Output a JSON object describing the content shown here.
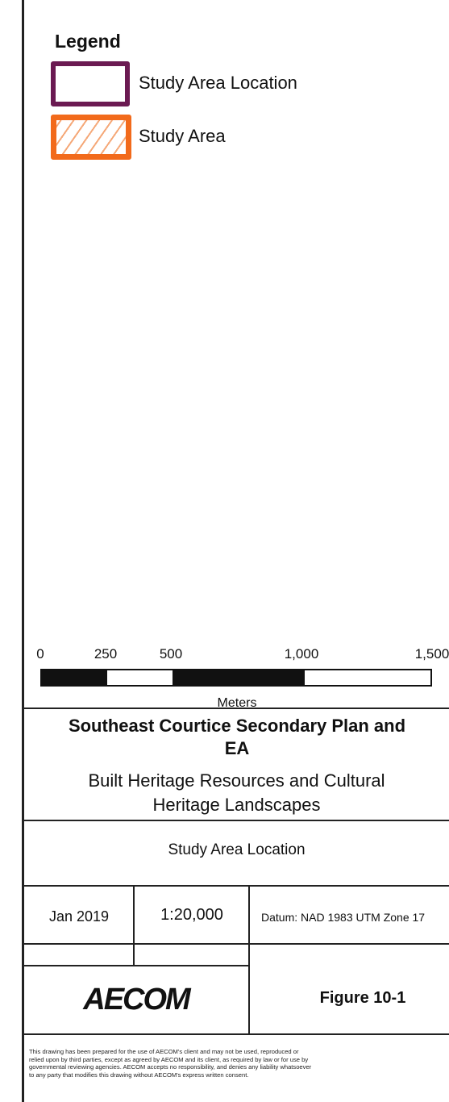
{
  "legend": {
    "title": "Legend",
    "items": [
      {
        "label": "Study Area Location",
        "color": "#6b1a52",
        "style": "outline"
      },
      {
        "label": "Study Area",
        "color": "#f26a1b",
        "style": "hatched"
      }
    ]
  },
  "scale_bar": {
    "ticks": [
      "0",
      "250",
      "500",
      "1,000",
      "1,500"
    ],
    "tick_values": [
      0,
      250,
      500,
      1000,
      1500
    ],
    "unit": "Meters"
  },
  "title_block": {
    "title_line1": "Southeast Courtice Secondary Plan and",
    "title_line2": "EA",
    "subtitle_line1": "Built Heritage Resources and Cultural",
    "subtitle_line2": "Heritage Landscapes",
    "map_name": "Study Area Location",
    "date": "Jan 2019",
    "scale": "1:20,000",
    "datum": "Datum: NAD 1983 UTM Zone 17",
    "logo": "AECOM",
    "figure": "Figure 10-1"
  },
  "disclaimer": "This drawing has been prepared for the use of AECOM's client and may not be used, reproduced or\nrelied upon by third parties, except as agreed by AECOM and its client, as required by law or for use by\ngovernmental reviewing agencies. AECOM accepts no responsibility, and denies any liability whatsoever\nto any party that modifies this drawing without AECOM's express written consent."
}
